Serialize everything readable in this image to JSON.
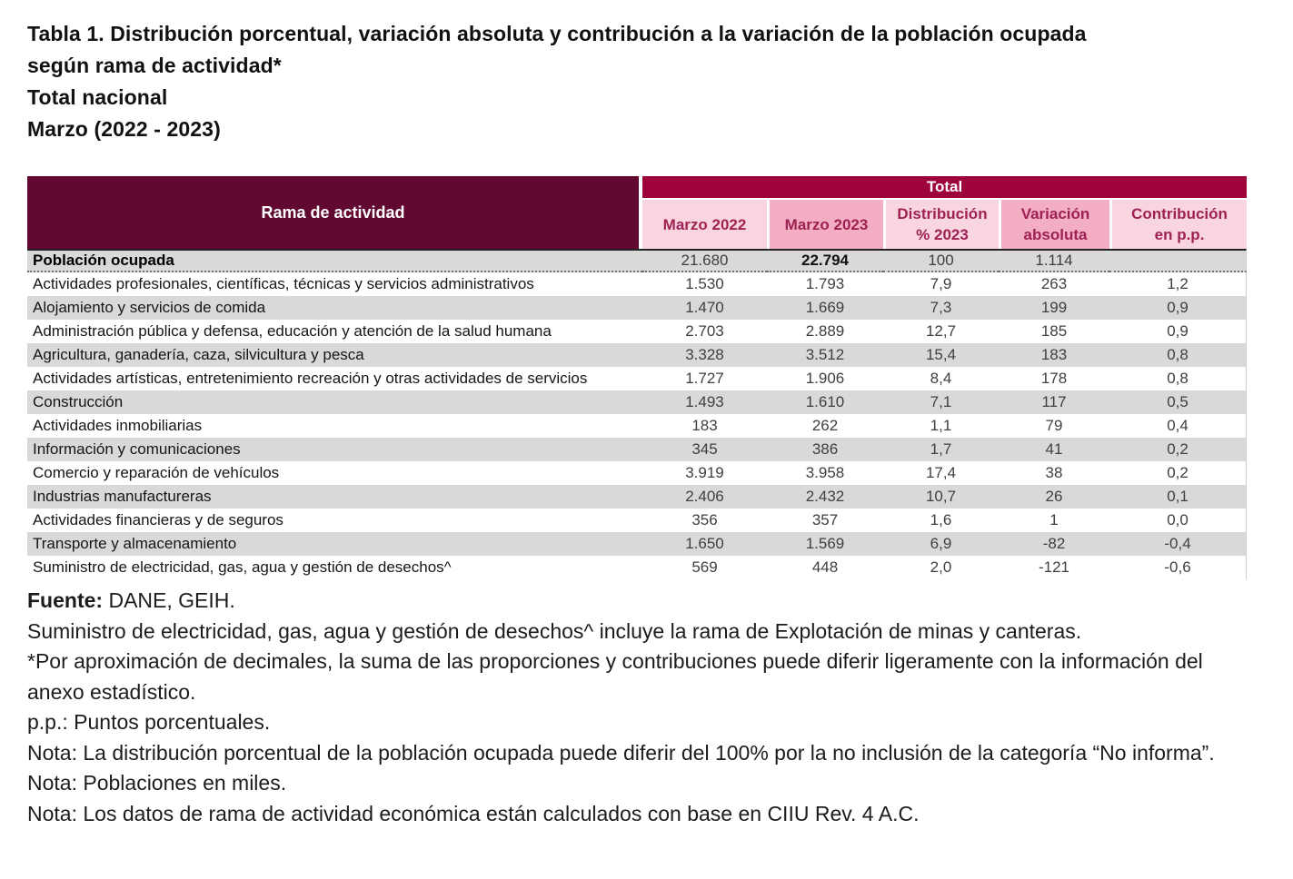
{
  "title": {
    "line1": "Tabla 1. Distribución porcentual, variación absoluta y contribución a la variación de la población ocupada",
    "line2": "según rama de actividad*",
    "line3": "Total nacional",
    "line4": "Marzo (2022 - 2023)"
  },
  "table": {
    "row_header": "Rama de actividad",
    "group_header": "Total",
    "columns": [
      {
        "l1": "Marzo 2022",
        "l2": ""
      },
      {
        "l1": "Marzo 2023",
        "l2": ""
      },
      {
        "l1": "Distribución",
        "l2": "% 2023"
      },
      {
        "l1": "Variación",
        "l2": "absoluta"
      },
      {
        "l1": "Contribución",
        "l2": "en p.p."
      }
    ],
    "total_row": {
      "label": "Población ocupada",
      "marzo_2022": "21.680",
      "marzo_2023": "22.794",
      "distribucion": "100",
      "variacion": "1.114",
      "contribucion": ""
    },
    "rows": [
      [
        "Actividades profesionales, científicas, técnicas y servicios administrativos",
        "1.530",
        "1.793",
        "7,9",
        "263",
        "1,2"
      ],
      [
        "Alojamiento y servicios de comida",
        "1.470",
        "1.669",
        "7,3",
        "199",
        "0,9"
      ],
      [
        "Administración pública y defensa, educación y atención de la salud humana",
        "2.703",
        "2.889",
        "12,7",
        "185",
        "0,9"
      ],
      [
        "Agricultura, ganadería, caza, silvicultura y pesca",
        "3.328",
        "3.512",
        "15,4",
        "183",
        "0,8"
      ],
      [
        "Actividades artísticas, entretenimiento recreación y otras actividades de servicios",
        "1.727",
        "1.906",
        "8,4",
        "178",
        "0,8"
      ],
      [
        "Construcción",
        "1.493",
        "1.610",
        "7,1",
        "117",
        "0,5"
      ],
      [
        "Actividades inmobiliarias",
        "183",
        "262",
        "1,1",
        "79",
        "0,4"
      ],
      [
        "Información y comunicaciones",
        "345",
        "386",
        "1,7",
        "41",
        "0,2"
      ],
      [
        "Comercio y reparación de vehículos",
        "3.919",
        "3.958",
        "17,4",
        "38",
        "0,2"
      ],
      [
        "Industrias manufactureras",
        "2.406",
        "2.432",
        "10,7",
        "26",
        "0,1"
      ],
      [
        "Actividades financieras y de seguros",
        "356",
        "357",
        "1,6",
        "1",
        "0,0"
      ],
      [
        "Transporte y almacenamiento",
        "1.650",
        "1.569",
        "6,9",
        "-82",
        "-0,4"
      ],
      [
        "Suministro de electricidad, gas, agua y gestión de desechos^",
        "569",
        "448",
        "2,0",
        "-121",
        "-0,6"
      ]
    ]
  },
  "footer": {
    "source_label": "Fuente:",
    "source_text": " DANE, GEIH.",
    "notes": [
      "Suministro de electricidad, gas, agua y gestión de desechos^ incluye la rama de Explotación de minas y canteras.",
      "*Por aproximación de decimales, la suma de las proporciones y contribuciones puede diferir ligeramente con la información del anexo estadístico.",
      "p.p.: Puntos porcentuales.",
      "Nota: La distribución porcentual de la población ocupada puede diferir del 100% por la no inclusión de la categoría “No informa”.",
      "Nota: Poblaciones en miles.",
      "Nota: Los datos de rama de actividad económica están calculados con base en CIIU Rev. 4 A.C."
    ]
  },
  "colors": {
    "dark_header": "#60082F",
    "band": "#9E033B",
    "pink_light": "#F9D6DF",
    "pink_medium": "#F3AEC3",
    "header_text": "#9E2154",
    "stripe": "#D9D9D9"
  }
}
